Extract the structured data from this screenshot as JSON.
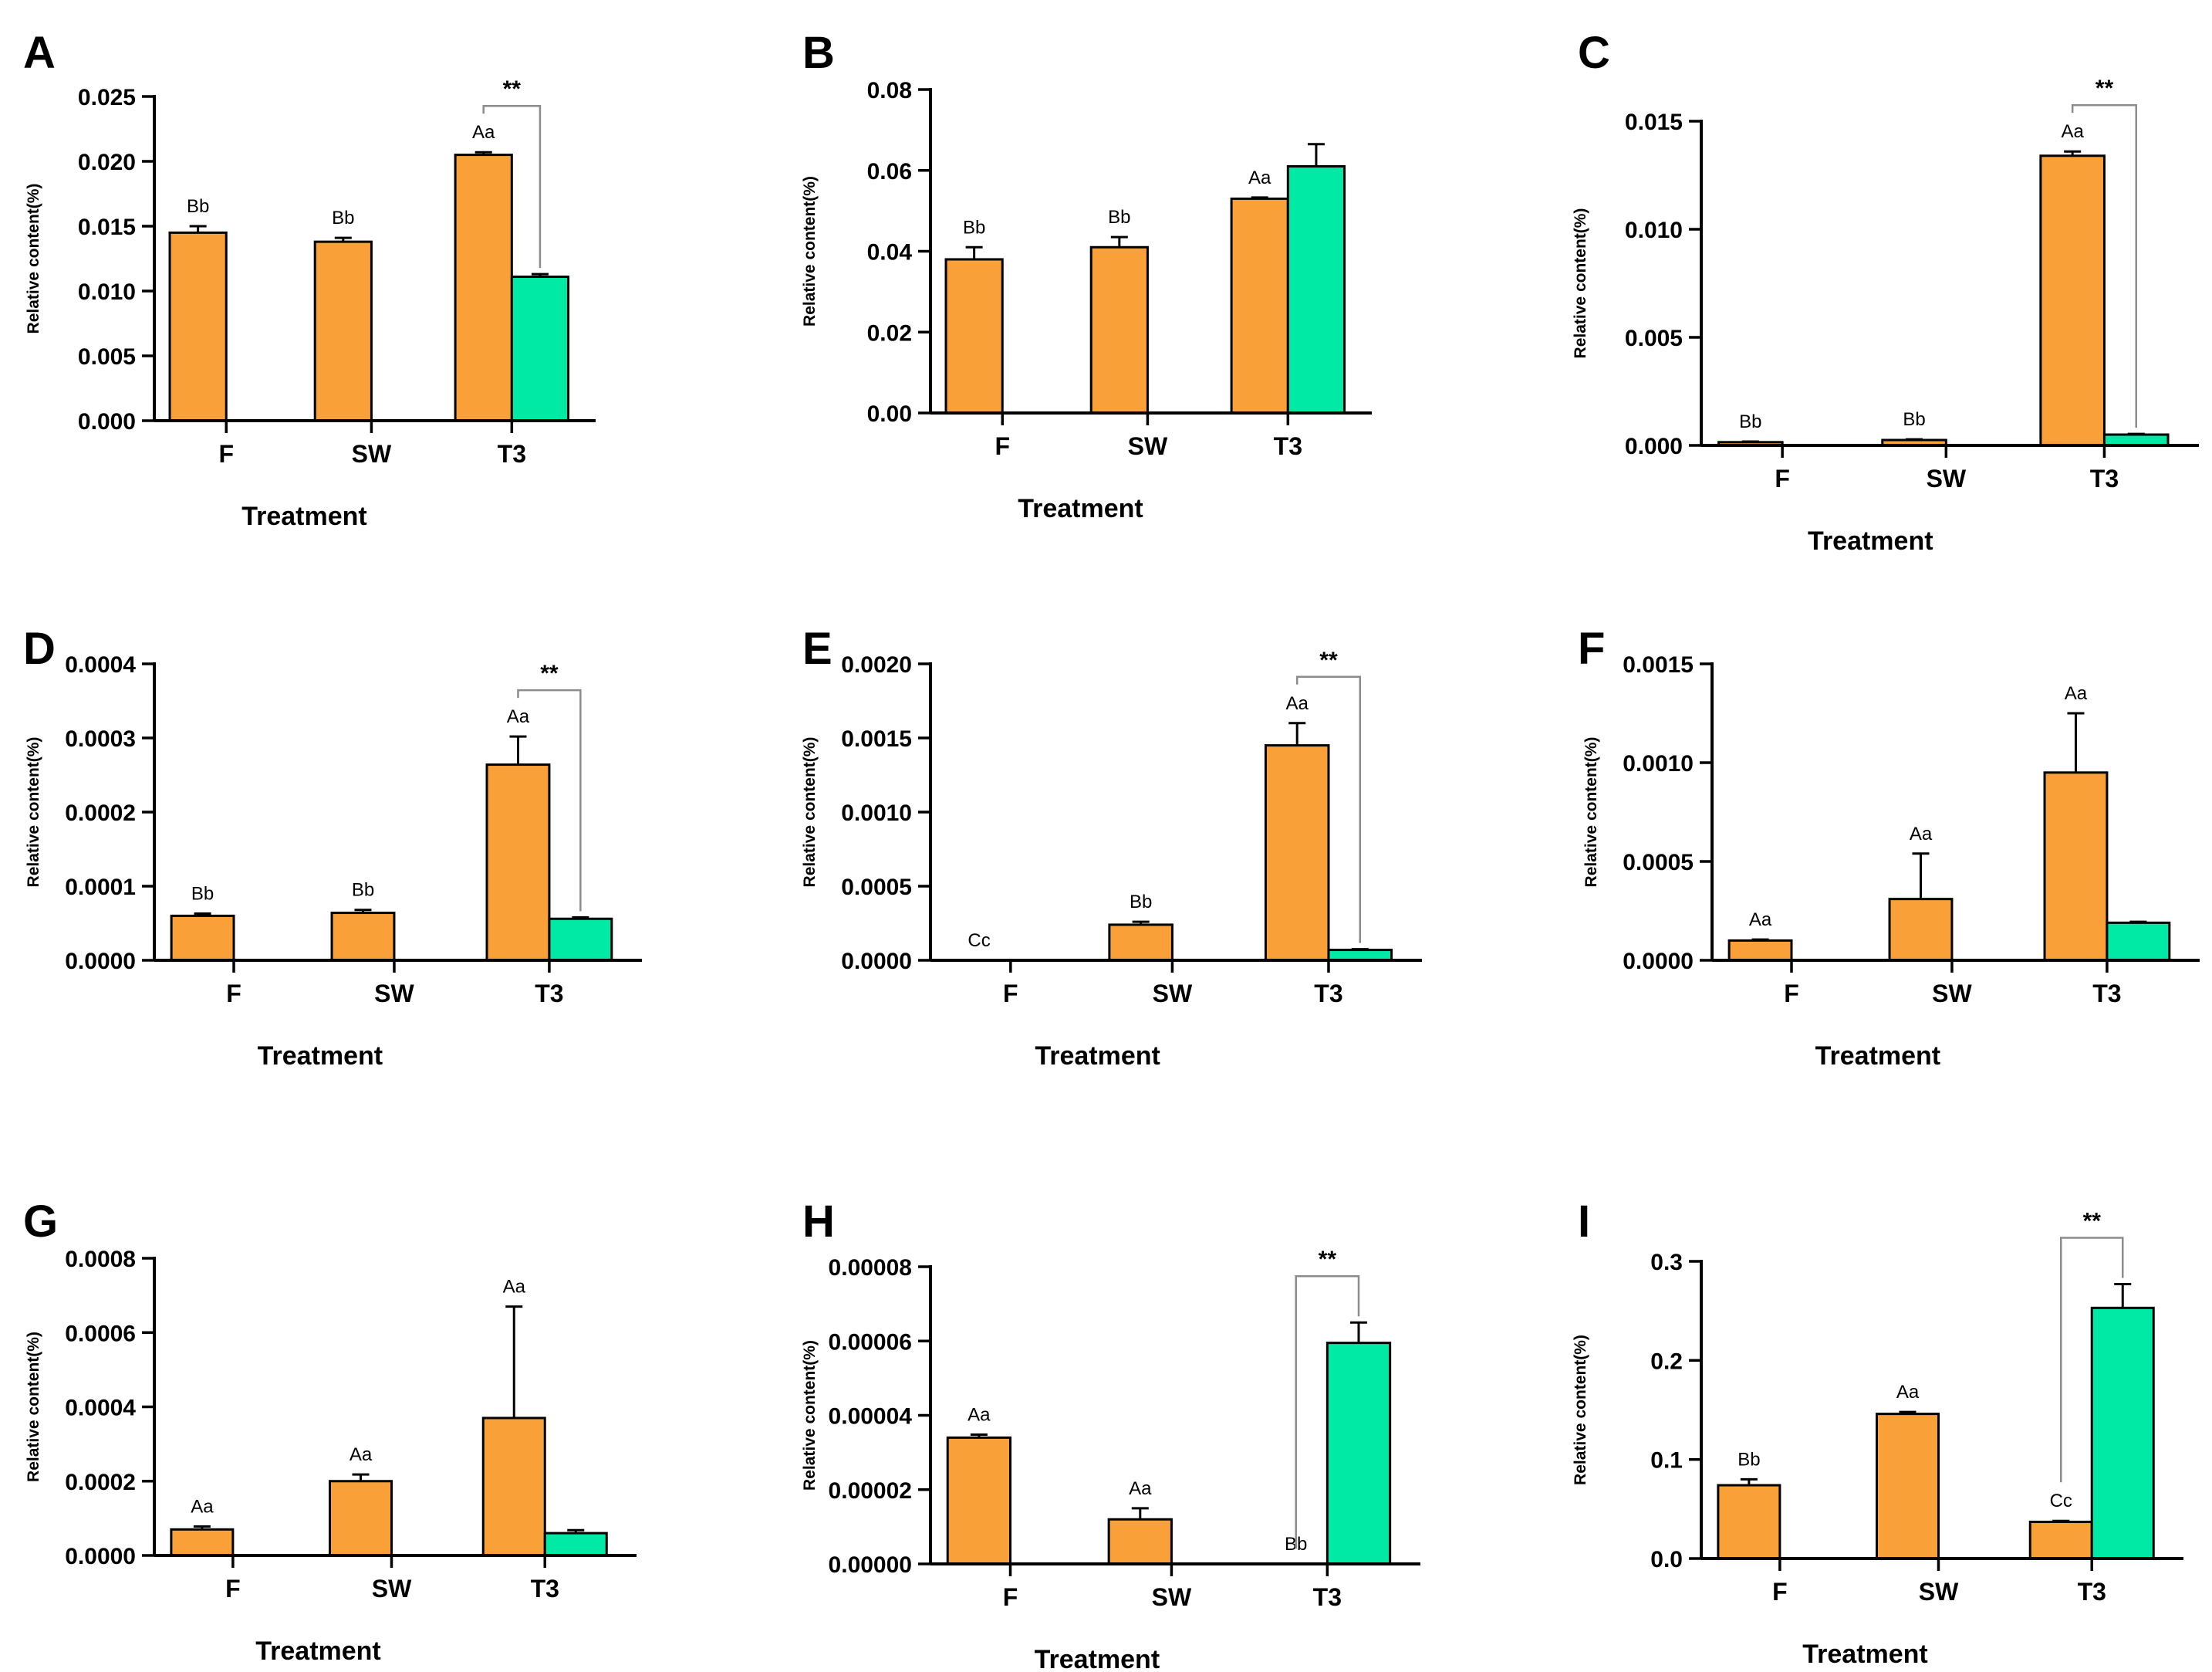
{
  "colors": {
    "orange": "#F9A038",
    "green": "#00EAA6",
    "axis": "#000000",
    "bracket": "#8C8C8C"
  },
  "chart_data": [
    {
      "panel": "A",
      "type": "bar",
      "title": "",
      "xlabel": "Treatment",
      "ylabel": "Relative content(%)",
      "categories": [
        "F",
        "SW",
        "T3"
      ],
      "ylim": [
        0,
        0.025
      ],
      "ticks": [
        "0.000",
        "0.005",
        "0.010",
        "0.015",
        "0.020",
        "0.025"
      ],
      "series": [
        {
          "name": "orange",
          "values": [
            0.0145,
            0.0138,
            0.0205
          ],
          "errors": [
            0.0005,
            0.0003,
            0.0002
          ],
          "labels": [
            "Bb",
            "Bb",
            "Aa"
          ]
        },
        {
          "name": "green",
          "values": [
            null,
            null,
            0.0111
          ],
          "errors": [
            null,
            null,
            0.0002
          ],
          "labels": [
            "",
            "",
            ""
          ]
        }
      ],
      "significance": [
        {
          "category": "T3",
          "text": "**"
        }
      ]
    },
    {
      "panel": "B",
      "type": "bar",
      "title": "",
      "xlabel": "Treatment",
      "ylabel": "Relative content(%)",
      "categories": [
        "F",
        "SW",
        "T3"
      ],
      "ylim": [
        0,
        0.08
      ],
      "ticks": [
        "0.00",
        "0.02",
        "0.04",
        "0.06",
        "0.08"
      ],
      "series": [
        {
          "name": "orange",
          "values": [
            0.038,
            0.041,
            0.053
          ],
          "errors": [
            0.003,
            0.0025,
            0.0003
          ],
          "labels": [
            "Bb",
            "Bb",
            "Aa"
          ]
        },
        {
          "name": "green",
          "values": [
            null,
            null,
            0.061
          ],
          "errors": [
            null,
            null,
            0.0055
          ],
          "labels": [
            "",
            "",
            ""
          ]
        }
      ],
      "significance": []
    },
    {
      "panel": "C",
      "type": "bar",
      "title": "",
      "xlabel": "Treatment",
      "ylabel": "Relative content(%)",
      "categories": [
        "F",
        "SW",
        "T3"
      ],
      "ylim": [
        0,
        0.015
      ],
      "ticks": [
        "0.000",
        "0.005",
        "0.010",
        "0.015"
      ],
      "series": [
        {
          "name": "orange",
          "values": [
            0.00015,
            0.00025,
            0.0134
          ],
          "errors": [
            3e-05,
            3e-05,
            0.0002
          ],
          "labels": [
            "Bb",
            "Bb",
            "Aa"
          ]
        },
        {
          "name": "green",
          "values": [
            null,
            null,
            0.0005
          ],
          "errors": [
            null,
            null,
            3e-05
          ],
          "labels": [
            "",
            "",
            ""
          ]
        }
      ],
      "significance": [
        {
          "category": "T3",
          "text": "**"
        }
      ]
    },
    {
      "panel": "D",
      "type": "bar",
      "title": "",
      "xlabel": "Treatment",
      "ylabel": "Relative content(%)",
      "categories": [
        "F",
        "SW",
        "T3"
      ],
      "ylim": [
        0,
        0.0004
      ],
      "ticks": [
        "0.0000",
        "0.0001",
        "0.0002",
        "0.0003",
        "0.0004"
      ],
      "series": [
        {
          "name": "orange",
          "values": [
            6e-05,
            6.4e-05,
            0.000264
          ],
          "errors": [
            3e-06,
            4e-06,
            3.8e-05
          ],
          "labels": [
            "Bb",
            "Bb",
            "Aa"
          ]
        },
        {
          "name": "green",
          "values": [
            null,
            null,
            5.6e-05
          ],
          "errors": [
            null,
            null,
            2e-06
          ],
          "labels": [
            "",
            "",
            ""
          ]
        }
      ],
      "significance": [
        {
          "category": "T3",
          "text": "**"
        }
      ]
    },
    {
      "panel": "E",
      "type": "bar",
      "title": "",
      "xlabel": "Treatment",
      "ylabel": "Relative content(%)",
      "categories": [
        "F",
        "SW",
        "T3"
      ],
      "ylim": [
        0,
        0.002
      ],
      "ticks": [
        "0.0000",
        "0.0005",
        "0.0010",
        "0.0015",
        "0.0020"
      ],
      "series": [
        {
          "name": "orange",
          "values": [
            0,
            0.00024,
            0.00145
          ],
          "errors": [
            0,
            2e-05,
            0.00015
          ],
          "labels": [
            "Cc",
            "Bb",
            "Aa"
          ]
        },
        {
          "name": "green",
          "values": [
            null,
            null,
            7e-05
          ],
          "errors": [
            null,
            null,
            5e-06
          ],
          "labels": [
            "",
            "",
            ""
          ]
        }
      ],
      "significance": [
        {
          "category": "T3",
          "text": "**"
        }
      ]
    },
    {
      "panel": "F",
      "type": "bar",
      "title": "",
      "xlabel": "Treatment",
      "ylabel": "Relative content(%)",
      "categories": [
        "F",
        "SW",
        "T3"
      ],
      "ylim": [
        0,
        0.0015
      ],
      "ticks": [
        "0.0000",
        "0.0005",
        "0.0010",
        "0.0015"
      ],
      "series": [
        {
          "name": "orange",
          "values": [
            0.0001,
            0.00031,
            0.00095
          ],
          "errors": [
            5e-06,
            0.00023,
            0.0003
          ],
          "labels": [
            "Aa",
            "Aa",
            "Aa"
          ]
        },
        {
          "name": "green",
          "values": [
            null,
            null,
            0.00019
          ],
          "errors": [
            null,
            null,
            5e-06
          ],
          "labels": [
            "",
            "",
            ""
          ]
        }
      ],
      "significance": []
    },
    {
      "panel": "G",
      "type": "bar",
      "title": "",
      "xlabel": "Treatment",
      "ylabel": "Relative content(%)",
      "categories": [
        "F",
        "SW",
        "T3"
      ],
      "ylim": [
        0,
        0.0008
      ],
      "ticks": [
        "0.0000",
        "0.0002",
        "0.0004",
        "0.0006",
        "0.0008"
      ],
      "series": [
        {
          "name": "orange",
          "values": [
            7e-05,
            0.0002,
            0.00037
          ],
          "errors": [
            8e-06,
            1.8e-05,
            0.0003
          ],
          "labels": [
            "Aa",
            "Aa",
            "Aa"
          ]
        },
        {
          "name": "green",
          "values": [
            null,
            null,
            6e-05
          ],
          "errors": [
            null,
            null,
            8e-06
          ],
          "labels": [
            "",
            "",
            ""
          ]
        }
      ],
      "significance": []
    },
    {
      "panel": "H",
      "type": "bar",
      "title": "",
      "xlabel": "Treatment",
      "ylabel": "Relative content(%)",
      "categories": [
        "F",
        "SW",
        "T3"
      ],
      "ylim": [
        0,
        8e-05
      ],
      "ticks": [
        "0.00000",
        "0.00002",
        "0.00004",
        "0.00006",
        "0.00008"
      ],
      "series": [
        {
          "name": "orange",
          "values": [
            3.4e-05,
            1.2e-05,
            0
          ],
          "errors": [
            8e-07,
            3e-06,
            0
          ],
          "labels": [
            "Aa",
            "Aa",
            "Bb"
          ]
        },
        {
          "name": "green",
          "values": [
            null,
            null,
            5.95e-05
          ],
          "errors": [
            null,
            null,
            5.5e-06
          ],
          "labels": [
            "",
            "",
            ""
          ]
        }
      ],
      "significance": [
        {
          "category": "T3",
          "text": "**"
        }
      ]
    },
    {
      "panel": "I",
      "type": "bar",
      "title": "",
      "xlabel": "Treatment",
      "ylabel": "Relative content(%)",
      "categories": [
        "F",
        "SW",
        "T3"
      ],
      "ylim": [
        0,
        0.3
      ],
      "ticks": [
        "0.0",
        "0.1",
        "0.2",
        "0.3"
      ],
      "series": [
        {
          "name": "orange",
          "values": [
            0.074,
            0.146,
            0.037
          ],
          "errors": [
            0.006,
            0.002,
            0.001
          ],
          "labels": [
            "Bb",
            "Aa",
            "Cc"
          ]
        },
        {
          "name": "green",
          "values": [
            null,
            null,
            0.253
          ],
          "errors": [
            null,
            null,
            0.024
          ],
          "labels": [
            "",
            "",
            ""
          ]
        }
      ],
      "significance": [
        {
          "category": "T3",
          "text": "**"
        }
      ]
    }
  ]
}
